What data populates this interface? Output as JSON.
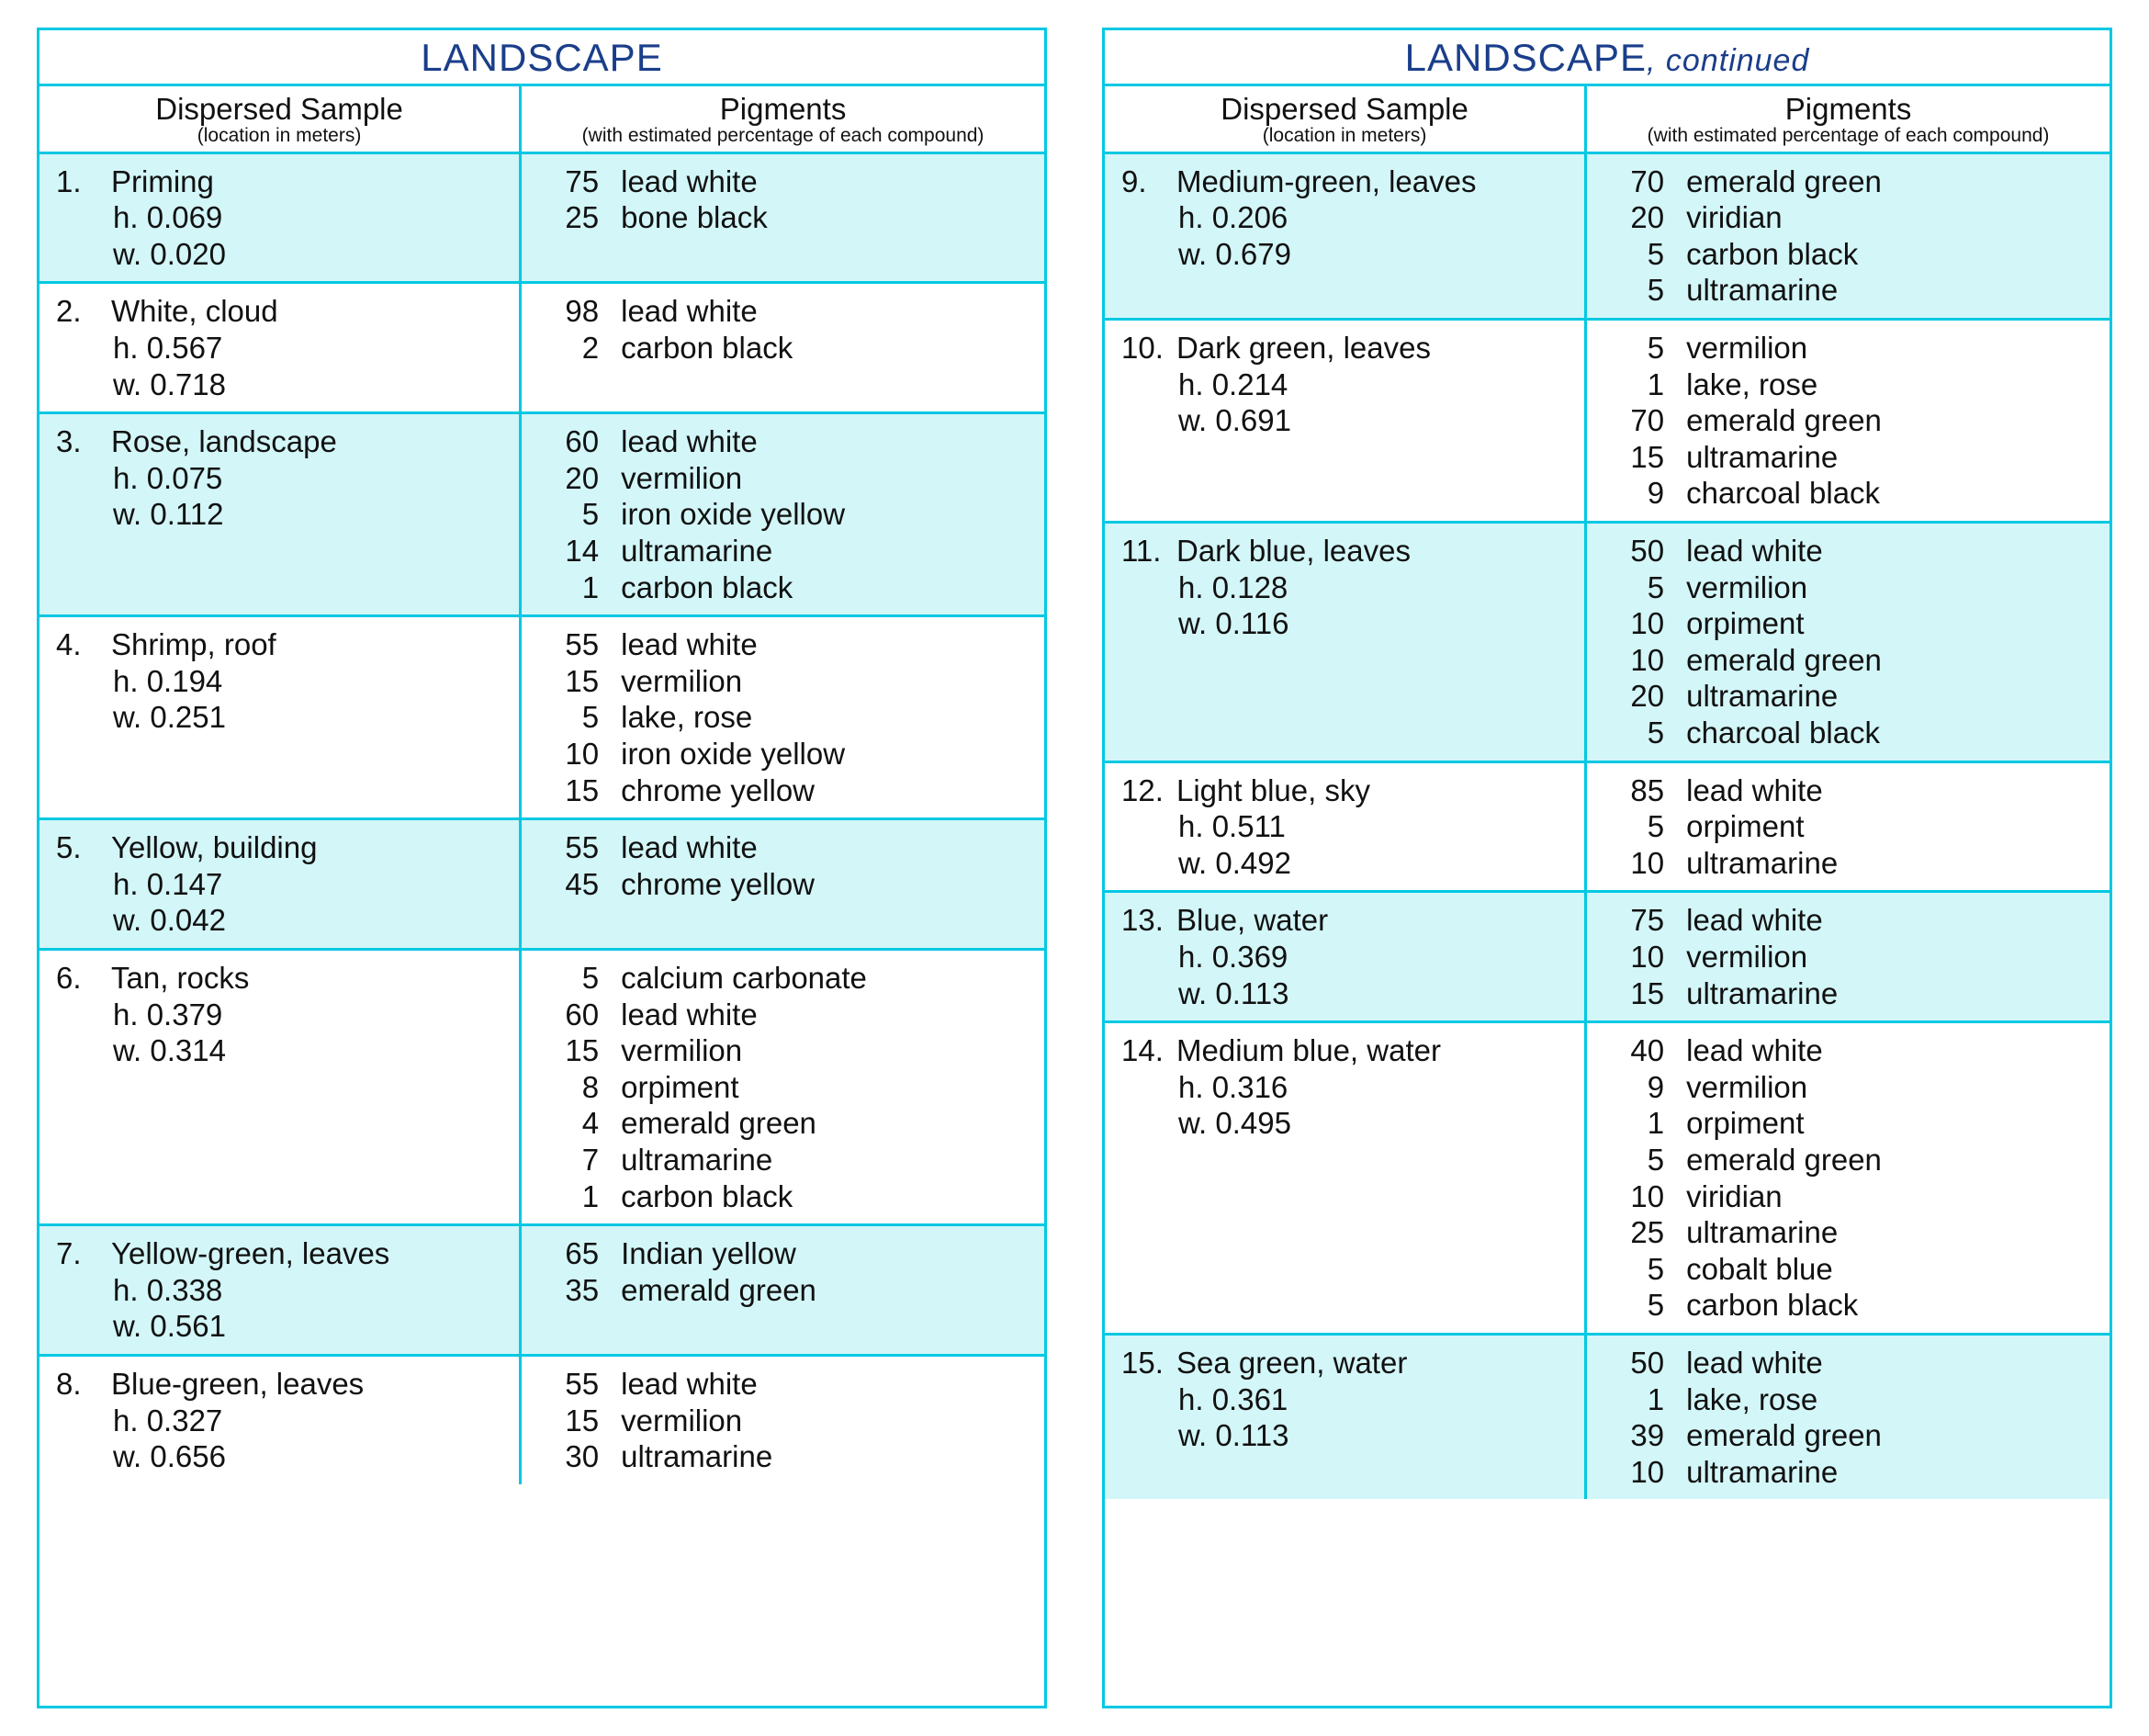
{
  "style": {
    "border_color": "#00c8e3",
    "title_color": "#1a3e8a",
    "shade_color": "#d3f6f8",
    "bg_color": "#ffffff",
    "text_color": "#111111",
    "title_fontsize": 42,
    "body_fontsize": 33,
    "headsub_fontsize": 21
  },
  "headers": {
    "sample_main": "Dispersed Sample",
    "sample_sub": "(location in meters)",
    "pigments_main": "Pigments",
    "pigments_sub": "(with estimated percentage of each compound)"
  },
  "tables": [
    {
      "title": "LANDSCAPE",
      "continued": null,
      "rows": [
        {
          "num": "1.",
          "name": "Priming",
          "h": "0.069",
          "w": "0.020",
          "pigments": [
            {
              "pct": "75",
              "name": "lead white"
            },
            {
              "pct": "25",
              "name": "bone black"
            }
          ]
        },
        {
          "num": "2.",
          "name": "White, cloud",
          "h": "0.567",
          "w": "0.718",
          "pigments": [
            {
              "pct": "98",
              "name": "lead white"
            },
            {
              "pct": "2",
              "name": "carbon black"
            }
          ]
        },
        {
          "num": "3.",
          "name": "Rose, landscape",
          "h": "0.075",
          "w": "0.112",
          "pigments": [
            {
              "pct": "60",
              "name": "lead white"
            },
            {
              "pct": "20",
              "name": "vermilion"
            },
            {
              "pct": "5",
              "name": "iron oxide yellow"
            },
            {
              "pct": "14",
              "name": "ultramarine"
            },
            {
              "pct": "1",
              "name": "carbon black"
            }
          ]
        },
        {
          "num": "4.",
          "name": "Shrimp, roof",
          "h": "0.194",
          "w": "0.251",
          "pigments": [
            {
              "pct": "55",
              "name": "lead white"
            },
            {
              "pct": "15",
              "name": "vermilion"
            },
            {
              "pct": "5",
              "name": "lake, rose"
            },
            {
              "pct": "10",
              "name": "iron oxide yellow"
            },
            {
              "pct": "15",
              "name": "chrome yellow"
            }
          ]
        },
        {
          "num": "5.",
          "name": "Yellow, building",
          "h": "0.147",
          "w": "0.042",
          "pigments": [
            {
              "pct": "55",
              "name": "lead white"
            },
            {
              "pct": "45",
              "name": "chrome yellow"
            }
          ]
        },
        {
          "num": "6.",
          "name": "Tan, rocks",
          "h": "0.379",
          "w": "0.314",
          "pigments": [
            {
              "pct": "5",
              "name": "calcium carbonate"
            },
            {
              "pct": "60",
              "name": "lead white"
            },
            {
              "pct": "15",
              "name": "vermilion"
            },
            {
              "pct": "8",
              "name": "orpiment"
            },
            {
              "pct": "4",
              "name": "emerald green"
            },
            {
              "pct": "7",
              "name": "ultramarine"
            },
            {
              "pct": "1",
              "name": "carbon black"
            }
          ]
        },
        {
          "num": "7.",
          "name": "Yellow-green, leaves",
          "h": "0.338",
          "w": "0.561",
          "pigments": [
            {
              "pct": "65",
              "name": "Indian yellow"
            },
            {
              "pct": "35",
              "name": "emerald green"
            }
          ]
        },
        {
          "num": "8.",
          "name": "Blue-green, leaves",
          "h": "0.327",
          "w": "0.656",
          "pigments": [
            {
              "pct": "55",
              "name": "lead white"
            },
            {
              "pct": "15",
              "name": "vermilion"
            },
            {
              "pct": "30",
              "name": "ultramarine"
            }
          ]
        }
      ]
    },
    {
      "title": "LANDSCAPE",
      "continued": ", continued",
      "rows": [
        {
          "num": "9.",
          "name": "Medium-green, leaves",
          "h": "0.206",
          "w": "0.679",
          "pigments": [
            {
              "pct": "70",
              "name": "emerald green"
            },
            {
              "pct": "20",
              "name": "viridian"
            },
            {
              "pct": "5",
              "name": "carbon black"
            },
            {
              "pct": "5",
              "name": "ultramarine"
            }
          ]
        },
        {
          "num": "10.",
          "name": "Dark green, leaves",
          "h": "0.214",
          "w": "0.691",
          "pigments": [
            {
              "pct": "5",
              "name": "vermilion"
            },
            {
              "pct": "1",
              "name": "lake, rose"
            },
            {
              "pct": "70",
              "name": "emerald green"
            },
            {
              "pct": "15",
              "name": "ultramarine"
            },
            {
              "pct": "9",
              "name": "charcoal black"
            }
          ]
        },
        {
          "num": "11.",
          "name": "Dark blue, leaves",
          "h": "0.128",
          "w": "0.116",
          "pigments": [
            {
              "pct": "50",
              "name": "lead white"
            },
            {
              "pct": "5",
              "name": "vermilion"
            },
            {
              "pct": "10",
              "name": "orpiment"
            },
            {
              "pct": "10",
              "name": "emerald green"
            },
            {
              "pct": "20",
              "name": "ultramarine"
            },
            {
              "pct": "5",
              "name": "charcoal black"
            }
          ]
        },
        {
          "num": "12.",
          "name": "Light blue, sky",
          "h": "0.511",
          "w": "0.492",
          "pigments": [
            {
              "pct": "85",
              "name": "lead white"
            },
            {
              "pct": "5",
              "name": "orpiment"
            },
            {
              "pct": "10",
              "name": "ultramarine"
            }
          ]
        },
        {
          "num": "13.",
          "name": "Blue, water",
          "h": "0.369",
          "w": "0.113",
          "pigments": [
            {
              "pct": "75",
              "name": "lead white"
            },
            {
              "pct": "10",
              "name": "vermilion"
            },
            {
              "pct": "15",
              "name": "ultramarine"
            }
          ]
        },
        {
          "num": "14.",
          "name": "Medium blue, water",
          "h": "0.316",
          "w": "0.495",
          "pigments": [
            {
              "pct": "40",
              "name": "lead white"
            },
            {
              "pct": "9",
              "name": "vermilion"
            },
            {
              "pct": "1",
              "name": "orpiment"
            },
            {
              "pct": "5",
              "name": "emerald green"
            },
            {
              "pct": "10",
              "name": "viridian"
            },
            {
              "pct": "25",
              "name": "ultramarine"
            },
            {
              "pct": "5",
              "name": "cobalt blue"
            },
            {
              "pct": "5",
              "name": "carbon black"
            }
          ]
        },
        {
          "num": "15.",
          "name": "Sea green, water",
          "h": "0.361",
          "w": "0.113",
          "pigments": [
            {
              "pct": "50",
              "name": "lead white"
            },
            {
              "pct": "1",
              "name": "lake, rose"
            },
            {
              "pct": "39",
              "name": "emerald green"
            },
            {
              "pct": "10",
              "name": "ultramarine"
            }
          ]
        }
      ]
    }
  ]
}
